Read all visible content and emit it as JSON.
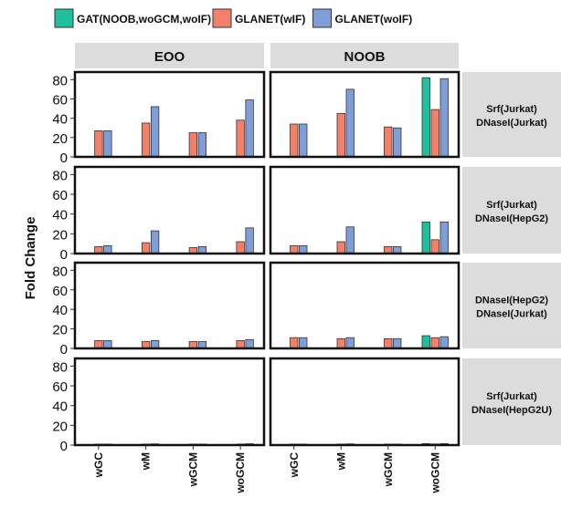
{
  "chart_data": {
    "type": "bar",
    "ylabel": "Fold Change",
    "xlabel": "",
    "ylim": [
      0,
      85
    ],
    "yticks": [
      0,
      20,
      40,
      60,
      80
    ],
    "grid": false,
    "legend_position": "top",
    "categories": [
      "wGC",
      "wM",
      "wGCM",
      "woGCM"
    ],
    "columns": [
      "EOO",
      "NOOB"
    ],
    "rows": [
      "Srf(Jurkat)\nDNaseI(Jurkat)",
      "Srf(Jurkat)\nDNaseI(HepG2)",
      "DNaseI(HepG2)\nDNaseI(Jurkat)",
      "Srf(Jurkat)\nDNaseI(HepG2U)"
    ],
    "series": [
      {
        "name": "GAT(NOOB,woGCM,woIF)",
        "color": "#1fbf9f"
      },
      {
        "name": "GLANET(wIF)",
        "color": "#f4806a"
      },
      {
        "name": "GLANET(woIF)",
        "color": "#7f9ed8"
      }
    ],
    "panels": [
      {
        "row": 0,
        "col": 0,
        "values": [
          [
            null,
            27,
            27
          ],
          [
            null,
            35,
            52
          ],
          [
            null,
            25,
            25
          ],
          [
            null,
            38,
            59
          ]
        ]
      },
      {
        "row": 0,
        "col": 1,
        "values": [
          [
            null,
            34,
            34
          ],
          [
            null,
            45,
            70
          ],
          [
            null,
            31,
            30
          ],
          [
            82,
            49,
            81
          ]
        ]
      },
      {
        "row": 1,
        "col": 0,
        "values": [
          [
            null,
            7,
            8
          ],
          [
            null,
            11,
            23
          ],
          [
            null,
            6,
            7
          ],
          [
            null,
            12,
            26
          ]
        ]
      },
      {
        "row": 1,
        "col": 1,
        "values": [
          [
            null,
            8,
            8
          ],
          [
            null,
            12,
            27
          ],
          [
            null,
            7,
            7
          ],
          [
            32,
            14,
            32
          ]
        ]
      },
      {
        "row": 2,
        "col": 0,
        "values": [
          [
            null,
            8,
            8
          ],
          [
            null,
            7,
            8
          ],
          [
            null,
            7,
            7
          ],
          [
            null,
            8,
            9
          ]
        ]
      },
      {
        "row": 2,
        "col": 1,
        "values": [
          [
            null,
            11,
            11
          ],
          [
            null,
            10,
            11
          ],
          [
            null,
            10,
            10
          ],
          [
            13,
            11,
            12
          ]
        ]
      },
      {
        "row": 3,
        "col": 0,
        "values": [
          [
            null,
            1,
            1
          ],
          [
            null,
            1,
            1.2
          ],
          [
            null,
            1,
            1
          ],
          [
            null,
            1,
            1.3
          ]
        ]
      },
      {
        "row": 3,
        "col": 1,
        "values": [
          [
            null,
            1,
            1
          ],
          [
            null,
            1,
            1.2
          ],
          [
            null,
            1,
            1
          ],
          [
            1.5,
            1.1,
            1.5
          ]
        ]
      }
    ]
  }
}
